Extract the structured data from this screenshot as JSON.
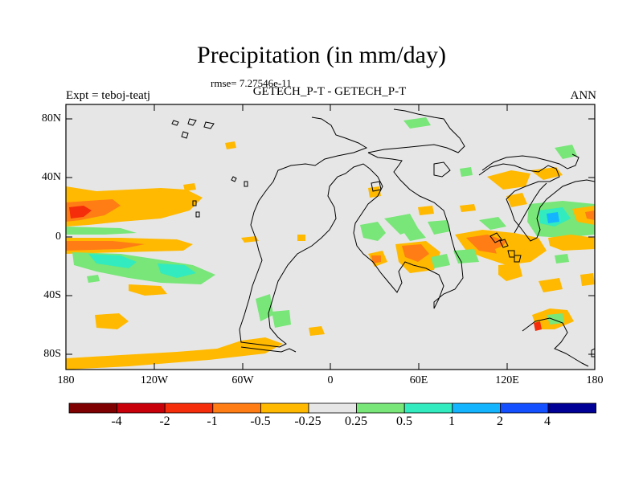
{
  "title": "Precipitation (in mm/day)",
  "rmse": "rmse= 7.27546e-11",
  "subtitle": "GETECH_P-T - GETECH_P-T",
  "expt": "Expt = teboj-teatj",
  "season": "ANN",
  "lat_labels": [
    "80N",
    "40N",
    "0",
    "40S",
    "80S"
  ],
  "lon_labels": [
    "180",
    "120W",
    "60W",
    "0",
    "60E",
    "120E",
    "180"
  ],
  "colorbar": {
    "labels": [
      "-4",
      "-2",
      "-1",
      "-0.5",
      "-0.25",
      "0.25",
      "0.5",
      "1",
      "2",
      "4"
    ],
    "colors": [
      "#7f0000",
      "#c8000a",
      "#f52d0a",
      "#ff7d14",
      "#ffb900",
      "#e6e6e6",
      "#78e678",
      "#32ebbe",
      "#14b4ff",
      "#1450ff",
      "#000096"
    ]
  },
  "map_colors": {
    "background": "#e6e6e6",
    "coastline": "#000000",
    "neg_025": "#ffb900",
    "neg_05": "#ff7d14",
    "neg_1": "#f52d0a",
    "pos_025": "#78e678",
    "pos_05": "#32ebbe",
    "pos_1": "#14b4ff"
  }
}
